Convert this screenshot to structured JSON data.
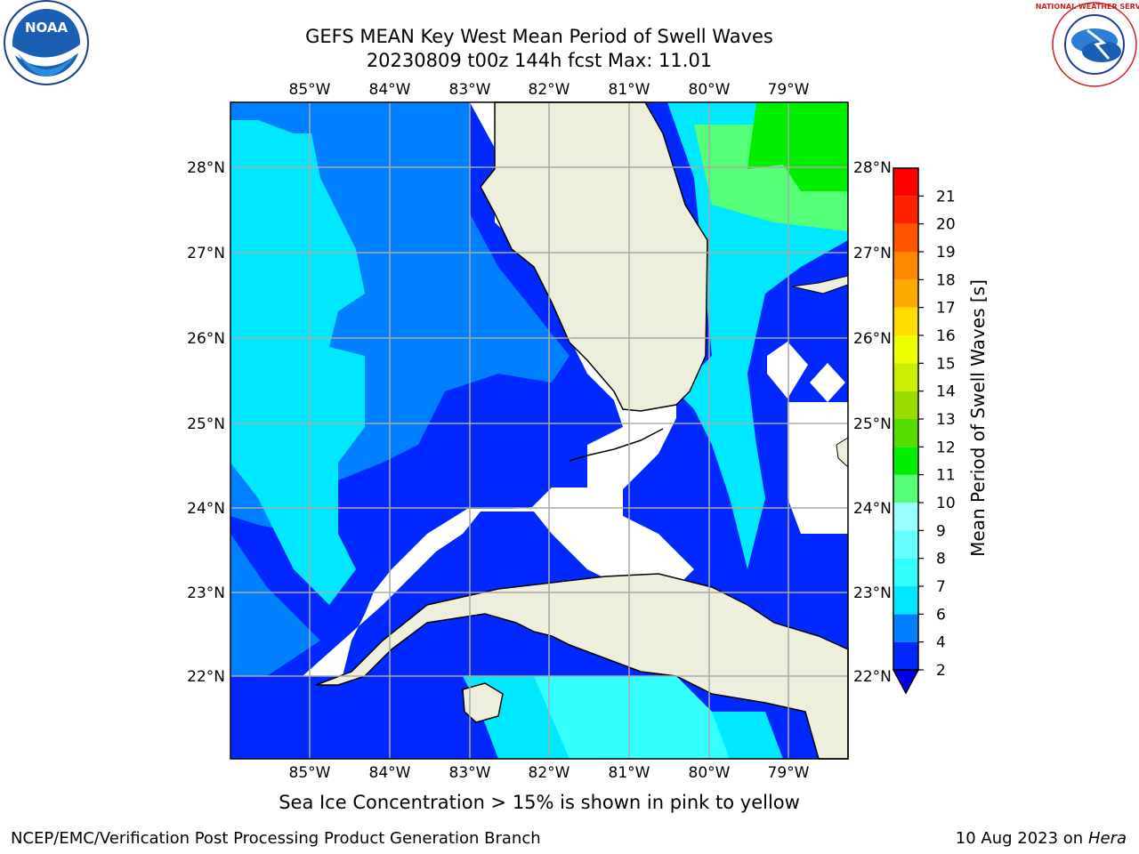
{
  "header": {
    "title_line1": "GEFS MEAN Key West Mean Period of Swell Waves",
    "title_line2": "20230809 t00z 144h fcst   Max: 11.01"
  },
  "logos": {
    "noaa_text": "NOAA",
    "nws_text": "NATIONAL WEATHER SERVICE"
  },
  "map": {
    "lon_labels": [
      "85°W",
      "84°W",
      "83°W",
      "82°W",
      "81°W",
      "80°W",
      "79°W"
    ],
    "lat_labels": [
      "28°N",
      "27°N",
      "26°N",
      "25°N",
      "24°N",
      "23°N",
      "22°N"
    ]
  },
  "colorbar": {
    "label": "Mean Period of Swell Waves [s]",
    "ticks": [
      "2",
      "4",
      "6",
      "7",
      "8",
      "9",
      "10",
      "11",
      "12",
      "13",
      "14",
      "15",
      "16",
      "17",
      "18",
      "19",
      "20",
      "21"
    ],
    "colors": [
      "#0028ff",
      "#0080ff",
      "#00e8ff",
      "#33ffff",
      "#66ffff",
      "#99ffff",
      "#55ff77",
      "#00ee00",
      "#55dd00",
      "#99dd00",
      "#ccee00",
      "#eeff00",
      "#ffdd00",
      "#ffaa00",
      "#ff8800",
      "#ff5500",
      "#ff2200",
      "#ff0000"
    ],
    "extend_color": "#0000ee"
  },
  "note": "Sea Ice Concentration > 15% is shown in pink to yellow",
  "footer": {
    "left": "NCEP/EMC/Verification Post Processing Product Generation Branch",
    "date": "10 Aug 2023 on",
    "machine": "Hera"
  }
}
